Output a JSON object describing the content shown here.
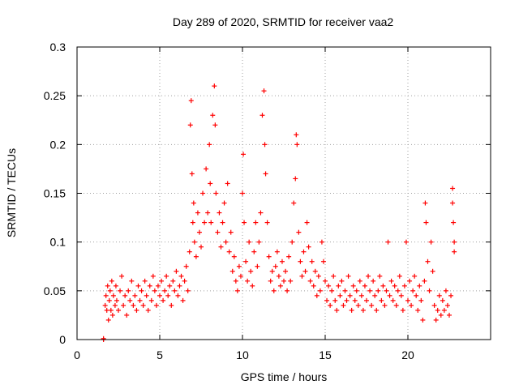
{
  "chart_data": {
    "type": "scatter",
    "title": "Day 289 of 2020, SRMTID for receiver vaa2",
    "xlabel": "GPS time / hours",
    "ylabel": "SRMTID / TECUs",
    "xlim": [
      0,
      25
    ],
    "ylim": [
      0,
      0.3
    ],
    "x_ticks": [
      0,
      5,
      10,
      15,
      20
    ],
    "x_tick_labels": [
      "0",
      "5",
      "10",
      "15",
      "20"
    ],
    "y_ticks": [
      0,
      0.05,
      0.1,
      0.15,
      0.2,
      0.25,
      0.3
    ],
    "y_tick_labels": [
      "0",
      "0.05",
      "0.1",
      "0.15",
      "0.2",
      "0.25",
      "0.3"
    ],
    "grid": true,
    "marker": "+",
    "series": [
      {
        "name": "vaa2",
        "color": "#ff0000",
        "points": [
          [
            1.6,
            0.001
          ],
          [
            1.6,
            0.0
          ],
          [
            1.7,
            0.035
          ],
          [
            1.75,
            0.045
          ],
          [
            1.8,
            0.03
          ],
          [
            1.85,
            0.055
          ],
          [
            1.9,
            0.02
          ],
          [
            1.95,
            0.04
          ],
          [
            2.0,
            0.05
          ],
          [
            2.05,
            0.03
          ],
          [
            2.1,
            0.06
          ],
          [
            2.15,
            0.025
          ],
          [
            2.2,
            0.045
          ],
          [
            2.3,
            0.035
          ],
          [
            2.35,
            0.055
          ],
          [
            2.4,
            0.04
          ],
          [
            2.5,
            0.03
          ],
          [
            2.6,
            0.05
          ],
          [
            2.7,
            0.065
          ],
          [
            2.8,
            0.035
          ],
          [
            2.9,
            0.045
          ],
          [
            3.0,
            0.025
          ],
          [
            3.1,
            0.05
          ],
          [
            3.2,
            0.04
          ],
          [
            3.3,
            0.06
          ],
          [
            3.4,
            0.035
          ],
          [
            3.5,
            0.045
          ],
          [
            3.6,
            0.03
          ],
          [
            3.7,
            0.055
          ],
          [
            3.8,
            0.04
          ],
          [
            3.9,
            0.05
          ],
          [
            4.0,
            0.035
          ],
          [
            4.1,
            0.06
          ],
          [
            4.2,
            0.045
          ],
          [
            4.3,
            0.03
          ],
          [
            4.4,
            0.055
          ],
          [
            4.5,
            0.04
          ],
          [
            4.6,
            0.065
          ],
          [
            4.7,
            0.05
          ],
          [
            4.8,
            0.035
          ],
          [
            4.9,
            0.055
          ],
          [
            5.0,
            0.045
          ],
          [
            5.1,
            0.06
          ],
          [
            5.2,
            0.04
          ],
          [
            5.3,
            0.05
          ],
          [
            5.4,
            0.065
          ],
          [
            5.5,
            0.045
          ],
          [
            5.6,
            0.055
          ],
          [
            5.7,
            0.035
          ],
          [
            5.8,
            0.06
          ],
          [
            5.9,
            0.05
          ],
          [
            6.0,
            0.07
          ],
          [
            6.1,
            0.045
          ],
          [
            6.2,
            0.055
          ],
          [
            6.3,
            0.065
          ],
          [
            6.4,
            0.04
          ],
          [
            6.5,
            0.06
          ],
          [
            6.6,
            0.075
          ],
          [
            6.7,
            0.05
          ],
          [
            6.8,
            0.09
          ],
          [
            6.85,
            0.22
          ],
          [
            6.9,
            0.245
          ],
          [
            6.95,
            0.17
          ],
          [
            7.0,
            0.12
          ],
          [
            7.05,
            0.14
          ],
          [
            7.1,
            0.1
          ],
          [
            7.2,
            0.085
          ],
          [
            7.3,
            0.13
          ],
          [
            7.4,
            0.11
          ],
          [
            7.5,
            0.095
          ],
          [
            7.6,
            0.15
          ],
          [
            7.7,
            0.12
          ],
          [
            7.8,
            0.175
          ],
          [
            7.9,
            0.13
          ],
          [
            8.0,
            0.2
          ],
          [
            8.05,
            0.16
          ],
          [
            8.1,
            0.12
          ],
          [
            8.2,
            0.23
          ],
          [
            8.3,
            0.26
          ],
          [
            8.35,
            0.22
          ],
          [
            8.4,
            0.15
          ],
          [
            8.5,
            0.11
          ],
          [
            8.6,
            0.13
          ],
          [
            8.7,
            0.095
          ],
          [
            8.8,
            0.12
          ],
          [
            8.9,
            0.14
          ],
          [
            9.0,
            0.1
          ],
          [
            9.1,
            0.16
          ],
          [
            9.2,
            0.09
          ],
          [
            9.3,
            0.11
          ],
          [
            9.4,
            0.07
          ],
          [
            9.5,
            0.085
          ],
          [
            9.6,
            0.06
          ],
          [
            9.7,
            0.05
          ],
          [
            9.8,
            0.075
          ],
          [
            9.9,
            0.065
          ],
          [
            10.0,
            0.15
          ],
          [
            10.05,
            0.19
          ],
          [
            10.1,
            0.12
          ],
          [
            10.2,
            0.08
          ],
          [
            10.3,
            0.06
          ],
          [
            10.4,
            0.1
          ],
          [
            10.5,
            0.07
          ],
          [
            10.6,
            0.055
          ],
          [
            10.7,
            0.09
          ],
          [
            10.8,
            0.12
          ],
          [
            10.9,
            0.075
          ],
          [
            11.0,
            0.1
          ],
          [
            11.1,
            0.13
          ],
          [
            11.2,
            0.23
          ],
          [
            11.3,
            0.255
          ],
          [
            11.35,
            0.2
          ],
          [
            11.4,
            0.17
          ],
          [
            11.5,
            0.12
          ],
          [
            11.6,
            0.085
          ],
          [
            11.7,
            0.06
          ],
          [
            11.8,
            0.07
          ],
          [
            11.9,
            0.05
          ],
          [
            12.0,
            0.075
          ],
          [
            12.1,
            0.09
          ],
          [
            12.2,
            0.065
          ],
          [
            12.3,
            0.055
          ],
          [
            12.4,
            0.08
          ],
          [
            12.5,
            0.06
          ],
          [
            12.6,
            0.07
          ],
          [
            12.7,
            0.05
          ],
          [
            12.8,
            0.085
          ],
          [
            12.9,
            0.06
          ],
          [
            13.0,
            0.1
          ],
          [
            13.1,
            0.14
          ],
          [
            13.2,
            0.165
          ],
          [
            13.25,
            0.21
          ],
          [
            13.3,
            0.2
          ],
          [
            13.4,
            0.11
          ],
          [
            13.5,
            0.08
          ],
          [
            13.6,
            0.065
          ],
          [
            13.7,
            0.09
          ],
          [
            13.8,
            0.07
          ],
          [
            13.9,
            0.12
          ],
          [
            14.0,
            0.095
          ],
          [
            14.1,
            0.06
          ],
          [
            14.2,
            0.08
          ],
          [
            14.3,
            0.055
          ],
          [
            14.4,
            0.07
          ],
          [
            14.5,
            0.045
          ],
          [
            14.6,
            0.065
          ],
          [
            14.7,
            0.05
          ],
          [
            14.8,
            0.1
          ],
          [
            14.9,
            0.08
          ],
          [
            15.0,
            0.06
          ],
          [
            15.1,
            0.04
          ],
          [
            15.2,
            0.055
          ],
          [
            15.3,
            0.035
          ],
          [
            15.4,
            0.05
          ],
          [
            15.5,
            0.065
          ],
          [
            15.6,
            0.04
          ],
          [
            15.7,
            0.03
          ],
          [
            15.8,
            0.055
          ],
          [
            15.9,
            0.045
          ],
          [
            16.0,
            0.06
          ],
          [
            16.1,
            0.035
          ],
          [
            16.2,
            0.05
          ],
          [
            16.3,
            0.04
          ],
          [
            16.4,
            0.065
          ],
          [
            16.5,
            0.045
          ],
          [
            16.6,
            0.03
          ],
          [
            16.7,
            0.055
          ],
          [
            16.8,
            0.04
          ],
          [
            16.9,
            0.05
          ],
          [
            17.0,
            0.035
          ],
          [
            17.1,
            0.06
          ],
          [
            17.2,
            0.045
          ],
          [
            17.3,
            0.03
          ],
          [
            17.4,
            0.055
          ],
          [
            17.5,
            0.04
          ],
          [
            17.6,
            0.065
          ],
          [
            17.7,
            0.05
          ],
          [
            17.8,
            0.035
          ],
          [
            17.9,
            0.06
          ],
          [
            18.0,
            0.045
          ],
          [
            18.1,
            0.03
          ],
          [
            18.2,
            0.05
          ],
          [
            18.3,
            0.065
          ],
          [
            18.4,
            0.04
          ],
          [
            18.5,
            0.055
          ],
          [
            18.6,
            0.035
          ],
          [
            18.7,
            0.05
          ],
          [
            18.8,
            0.1
          ],
          [
            18.9,
            0.045
          ],
          [
            19.0,
            0.06
          ],
          [
            19.1,
            0.04
          ],
          [
            19.2,
            0.055
          ],
          [
            19.3,
            0.035
          ],
          [
            19.4,
            0.05
          ],
          [
            19.5,
            0.065
          ],
          [
            19.6,
            0.045
          ],
          [
            19.7,
            0.03
          ],
          [
            19.8,
            0.055
          ],
          [
            19.9,
            0.1
          ],
          [
            20.0,
            0.04
          ],
          [
            20.1,
            0.06
          ],
          [
            20.2,
            0.035
          ],
          [
            20.3,
            0.05
          ],
          [
            20.4,
            0.065
          ],
          [
            20.5,
            0.045
          ],
          [
            20.6,
            0.03
          ],
          [
            20.7,
            0.055
          ],
          [
            20.8,
            0.04
          ],
          [
            20.9,
            0.02
          ],
          [
            21.0,
            0.06
          ],
          [
            21.05,
            0.14
          ],
          [
            21.1,
            0.12
          ],
          [
            21.2,
            0.08
          ],
          [
            21.3,
            0.05
          ],
          [
            21.4,
            0.1
          ],
          [
            21.5,
            0.07
          ],
          [
            21.6,
            0.035
          ],
          [
            21.7,
            0.02
          ],
          [
            21.8,
            0.03
          ],
          [
            21.9,
            0.045
          ],
          [
            22.0,
            0.025
          ],
          [
            22.1,
            0.04
          ],
          [
            22.2,
            0.03
          ],
          [
            22.3,
            0.05
          ],
          [
            22.4,
            0.035
          ],
          [
            22.5,
            0.025
          ],
          [
            22.6,
            0.045
          ],
          [
            22.7,
            0.155
          ],
          [
            22.7,
            0.14
          ],
          [
            22.75,
            0.12
          ],
          [
            22.8,
            0.1
          ],
          [
            22.8,
            0.09
          ]
        ]
      }
    ]
  }
}
